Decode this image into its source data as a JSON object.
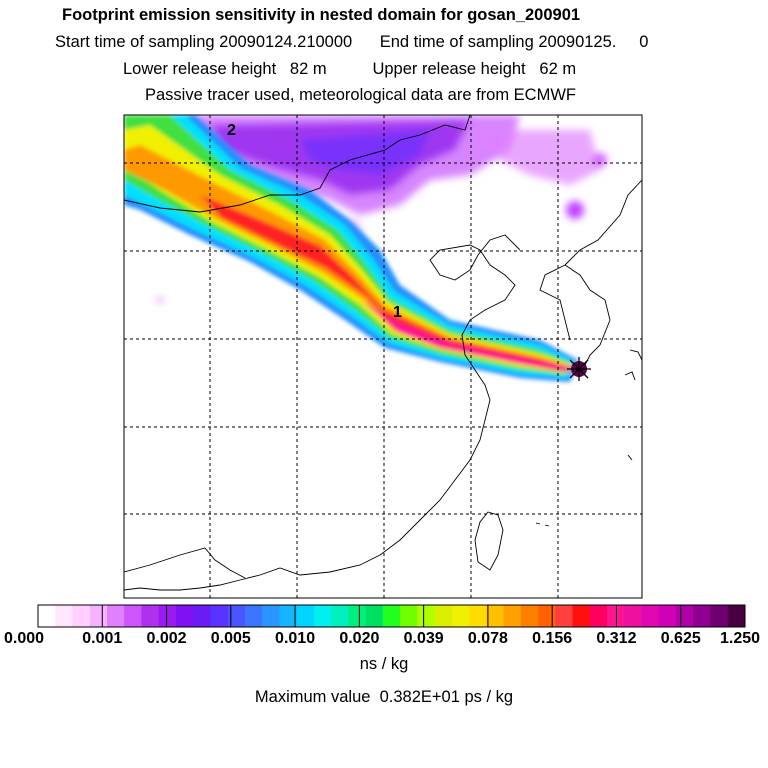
{
  "header": {
    "title": "Footprint emission sensitivity in nested domain for gosan_200901",
    "sampling_line": "Start time of sampling 20090124.210000      End time of sampling 20090125.     0",
    "release_line": "Lower release height   82 m          Upper release height   62 m",
    "tracer_line": "Passive tracer used, meteorological data are from ECMWF"
  },
  "map": {
    "labels": [
      "1",
      "2"
    ],
    "colors": {
      "plume_core": "#ff1493",
      "plume_red": "#ff2020",
      "plume_orange": "#ff9900",
      "plume_yellow": "#f0f000",
      "plume_green": "#40e040",
      "plume_cyan": "#00e0ff",
      "plume_blue": "#2090ff",
      "haze_violet": "#8a2be2",
      "haze_magenta": "#d050ff"
    }
  },
  "colorbar": {
    "tick_labels": [
      "0.000",
      "0.001",
      "0.002",
      "0.005",
      "0.010",
      "0.020",
      "0.039",
      "0.078",
      "0.156",
      "0.312",
      "0.625",
      "1.250"
    ],
    "units": "ns / kg",
    "colors": [
      "#ffffff",
      "#ffe6ff",
      "#ffd0ff",
      "#f5b3ff",
      "#e080ff",
      "#cc55ff",
      "#b030f0",
      "#9a1af0",
      "#7f10f0",
      "#6a1cf5",
      "#5a32ff",
      "#4a55ff",
      "#3a75ff",
      "#2a95ff",
      "#15b5ff",
      "#00d5ff",
      "#00f0f0",
      "#00f0c0",
      "#00f080",
      "#00e060",
      "#20ff20",
      "#70ff00",
      "#b0ff00",
      "#d8f000",
      "#f0f000",
      "#ffdd00",
      "#ffc000",
      "#ffa000",
      "#ff8000",
      "#ff6000",
      "#ff4040",
      "#ff1010",
      "#ff0060",
      "#ff1493",
      "#f010a0",
      "#e008b0",
      "#d000b8",
      "#b000a8",
      "#900090",
      "#700070",
      "#4a0040"
    ]
  },
  "footer": {
    "maximum_value": "Maximum value  0.382E+01 ps / kg"
  }
}
